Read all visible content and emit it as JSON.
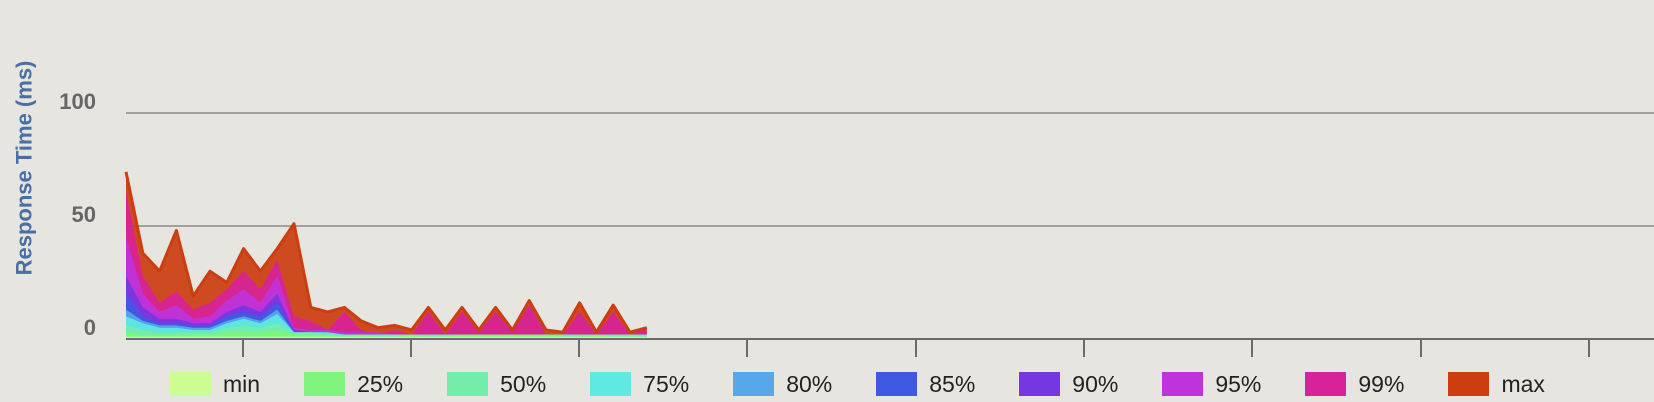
{
  "chart_data": {
    "type": "area",
    "title": "",
    "xlabel": "",
    "ylabel": "Response Time (ms)",
    "ylim": [
      0,
      100
    ],
    "yticks": [
      0,
      50,
      100
    ],
    "grid": true,
    "legend_position": "bottom",
    "x": [
      0,
      1,
      2,
      3,
      4,
      5,
      6,
      7,
      8,
      9,
      10,
      11,
      12,
      13,
      14,
      15,
      16,
      17,
      18,
      19,
      20,
      21,
      22,
      23,
      24,
      25,
      26,
      27,
      28,
      29,
      30,
      31
    ],
    "series": [
      {
        "name": "min",
        "color": "#ccfd94",
        "values": [
          1,
          1,
          1,
          1,
          1,
          1,
          1,
          1,
          1,
          1,
          1,
          1,
          1,
          1,
          1,
          1,
          1,
          1,
          1,
          1,
          1,
          1,
          1,
          1,
          1,
          1,
          1,
          1,
          1,
          1,
          1,
          1
        ]
      },
      {
        "name": "25%",
        "color": "#7ff47d",
        "values": [
          3,
          2,
          2,
          2,
          2,
          2,
          3,
          3,
          3,
          4,
          2,
          2,
          2,
          1,
          2,
          1,
          1,
          2,
          1,
          1,
          2,
          2,
          2,
          2,
          2,
          2,
          1,
          1,
          2,
          1,
          1,
          1
        ]
      },
      {
        "name": "50%",
        "color": "#72eeaa",
        "values": [
          6,
          4,
          3,
          3,
          3,
          3,
          5,
          6,
          5,
          7,
          3,
          3,
          2,
          2,
          2,
          2,
          2,
          2,
          2,
          2,
          2,
          2,
          2,
          2,
          2,
          2,
          2,
          2,
          2,
          2,
          2,
          2
        ]
      },
      {
        "name": "75%",
        "color": "#60e9e2",
        "values": [
          10,
          7,
          5,
          5,
          4,
          4,
          7,
          9,
          7,
          11,
          3,
          3,
          3,
          2,
          2,
          2,
          2,
          2,
          2,
          2,
          2,
          2,
          2,
          2,
          2,
          2,
          2,
          2,
          2,
          2,
          2,
          2
        ]
      },
      {
        "name": "80%",
        "color": "#56a8ea",
        "values": [
          13,
          8,
          6,
          6,
          5,
          5,
          8,
          10,
          8,
          13,
          3,
          3,
          3,
          2,
          2,
          2,
          2,
          2,
          2,
          2,
          2,
          2,
          2,
          2,
          2,
          2,
          2,
          2,
          2,
          2,
          2,
          2
        ]
      },
      {
        "name": "85%",
        "color": "#4059e2",
        "values": [
          20,
          10,
          7,
          7,
          6,
          6,
          10,
          12,
          10,
          16,
          3,
          3,
          3,
          2,
          2,
          2,
          2,
          2,
          2,
          2,
          2,
          2,
          2,
          2,
          2,
          2,
          2,
          2,
          2,
          2,
          2,
          2
        ]
      },
      {
        "name": "90%",
        "color": "#7537e0",
        "values": [
          28,
          14,
          9,
          9,
          7,
          7,
          12,
          15,
          12,
          20,
          4,
          3,
          3,
          2,
          2,
          2,
          2,
          2,
          2,
          2,
          2,
          2,
          2,
          2,
          2,
          2,
          2,
          2,
          2,
          2,
          2,
          2
        ]
      },
      {
        "name": "95%",
        "color": "#bf33dc",
        "values": [
          45,
          20,
          12,
          15,
          9,
          10,
          17,
          22,
          16,
          28,
          5,
          4,
          4,
          3,
          3,
          3,
          2,
          2,
          2,
          2,
          2,
          2,
          2,
          2,
          2,
          2,
          2,
          2,
          2,
          2,
          2,
          2
        ]
      },
      {
        "name": "99%",
        "color": "#d8229a",
        "values": [
          65,
          28,
          16,
          21,
          13,
          16,
          22,
          30,
          22,
          35,
          10,
          8,
          4,
          12,
          4,
          2,
          4,
          2,
          12,
          2,
          12,
          3,
          12,
          3,
          15,
          2,
          2,
          12,
          2,
          12,
          2,
          5
        ]
      },
      {
        "name": "max",
        "color": "#cc3e10",
        "values": [
          74,
          38,
          30,
          48,
          19,
          30,
          25,
          40,
          30,
          40,
          51,
          14,
          12,
          14,
          8,
          5,
          6,
          4,
          14,
          4,
          14,
          4,
          14,
          4,
          17,
          4,
          3,
          16,
          3,
          15,
          3,
          5
        ]
      }
    ]
  }
}
